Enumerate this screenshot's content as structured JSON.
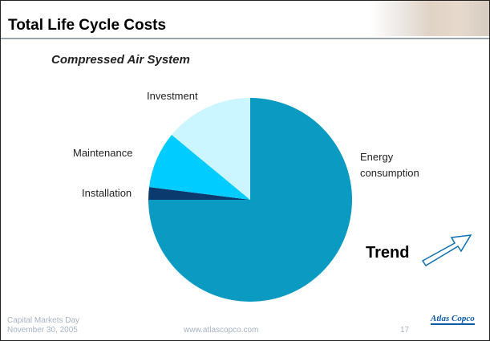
{
  "header": {
    "title": "Total Life Cycle Costs"
  },
  "subtitle": "Compressed Air System",
  "chart_data": {
    "type": "pie",
    "categories": [
      "Energy consumption",
      "Installation",
      "Maintenance",
      "Investment"
    ],
    "values": [
      75,
      2,
      9,
      14
    ],
    "colors": [
      "#0a9ac2",
      "#0b3a6e",
      "#00ccff",
      "#ccf6ff"
    ]
  },
  "trend": "Trend",
  "footer": {
    "event": "Capital Markets Day",
    "date": "November 30, 2005",
    "url": "www.atlascopco.com",
    "page": 17,
    "logo": "Atlas Copco"
  }
}
